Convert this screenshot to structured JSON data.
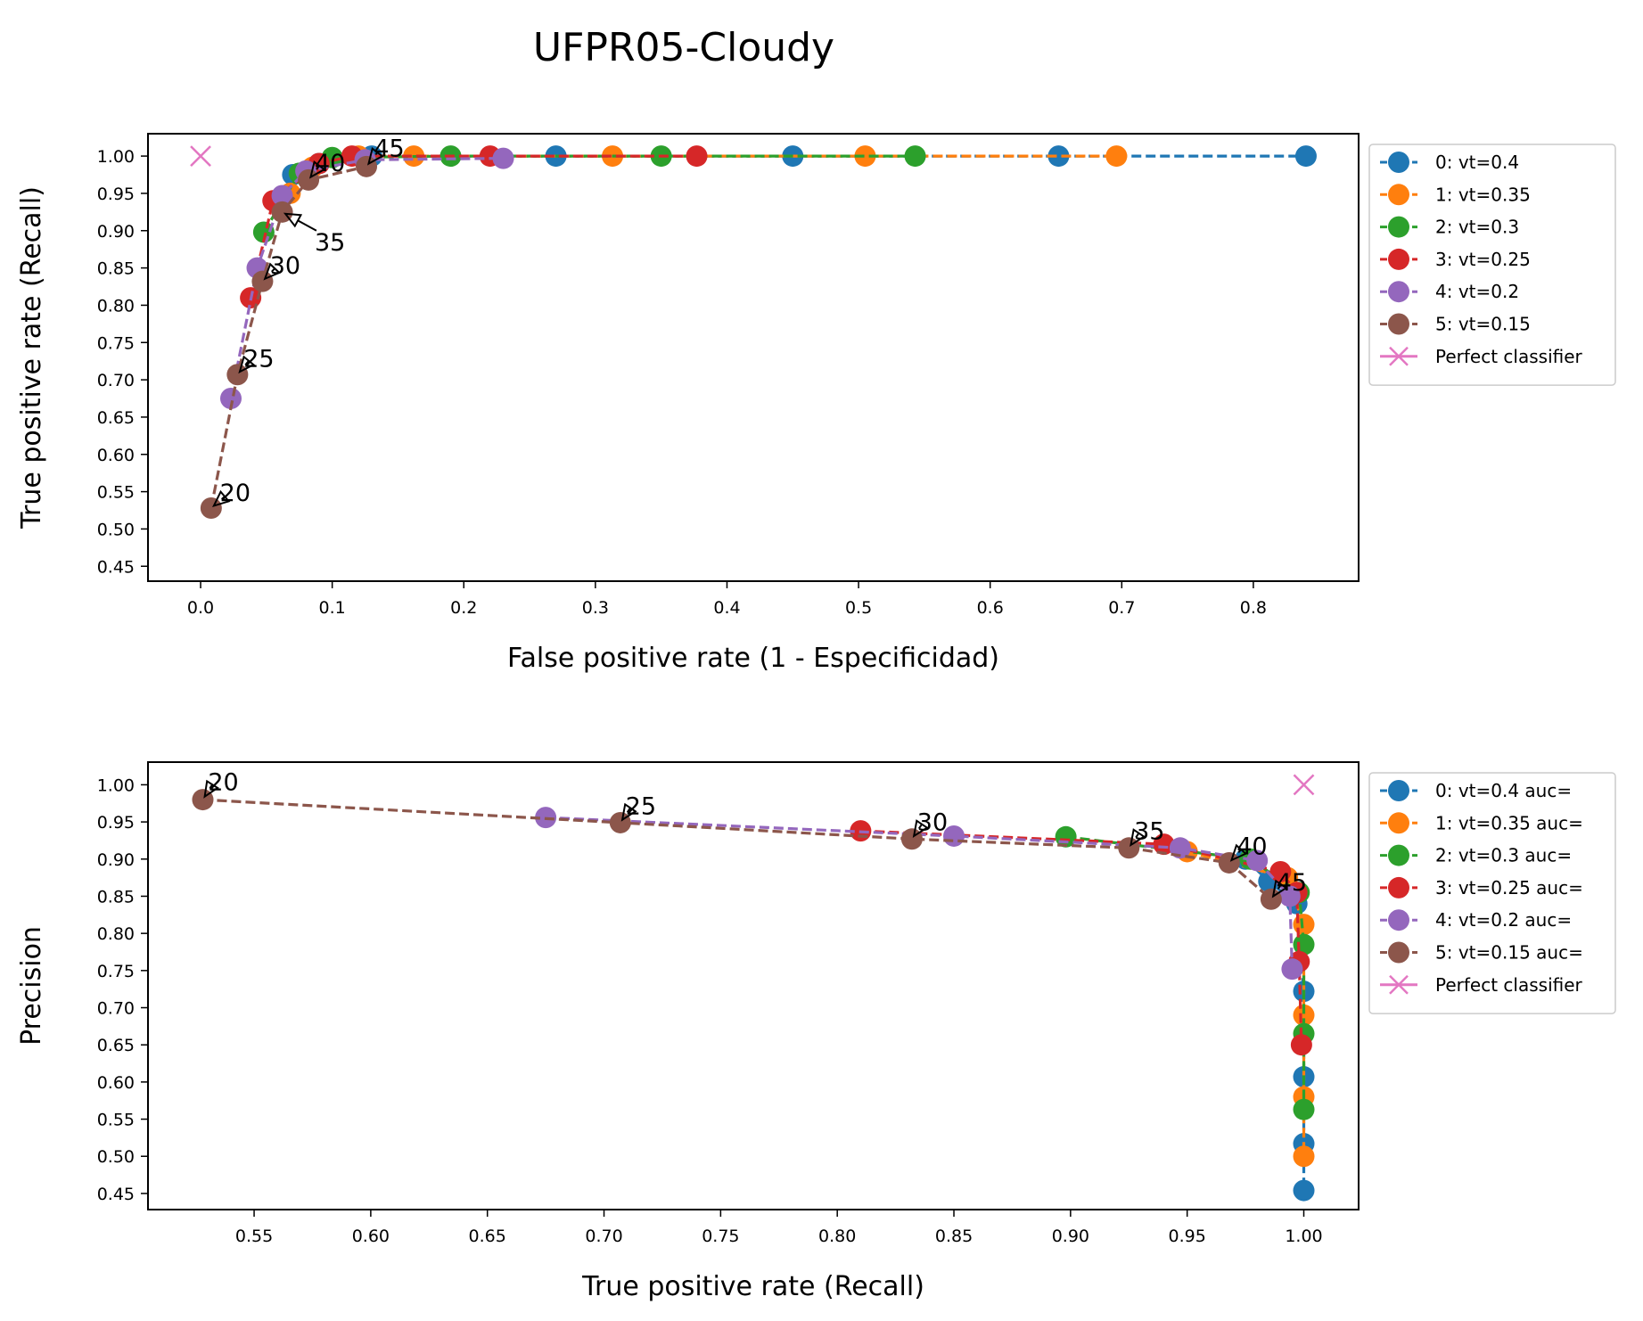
{
  "figure": {
    "title": "UFPR05-Cloudy"
  },
  "colors": {
    "series": [
      "#1f77b4",
      "#ff7f0e",
      "#2ca02c",
      "#d62728",
      "#9467bd",
      "#8c564b"
    ],
    "perfect": "#e377c2"
  },
  "chart_data": [
    {
      "type": "line",
      "name": "roc",
      "xlabel": "False positive rate (1 - Especificidad)",
      "ylabel": "True positive rate (Recall)",
      "xlim": [
        -0.04,
        0.88
      ],
      "ylim": [
        0.43,
        1.03
      ],
      "xticks": [
        0.0,
        0.1,
        0.2,
        0.3,
        0.4,
        0.5,
        0.6,
        0.7,
        0.8
      ],
      "yticks": [
        0.45,
        0.5,
        0.55,
        0.6,
        0.65,
        0.7,
        0.75,
        0.8,
        0.85,
        0.9,
        0.95,
        1.0
      ],
      "grid": false,
      "legend_position": "outside-right",
      "series": [
        {
          "name": "0: vt=0.4",
          "points": [
            [
              0.07,
              0.975
            ],
            [
              0.09,
              0.99
            ],
            [
              0.13,
              1.0
            ],
            [
              0.27,
              1.0
            ],
            [
              0.45,
              1.0
            ],
            [
              0.652,
              1.0
            ],
            [
              0.84,
              1.0
            ]
          ]
        },
        {
          "name": "1: vt=0.35",
          "points": [
            [
              0.068,
              0.95
            ],
            [
              0.085,
              0.985
            ],
            [
              0.12,
              1.0
            ],
            [
              0.162,
              1.0
            ],
            [
              0.313,
              1.0
            ],
            [
              0.505,
              1.0
            ],
            [
              0.696,
              1.0
            ]
          ]
        },
        {
          "name": "2: vt=0.3",
          "points": [
            [
              0.048,
              0.898
            ],
            [
              0.075,
              0.977
            ],
            [
              0.1,
              0.998
            ],
            [
              0.19,
              1.0
            ],
            [
              0.35,
              1.0
            ],
            [
              0.543,
              1.0
            ]
          ]
        },
        {
          "name": "3: vt=0.25",
          "points": [
            [
              0.038,
              0.81
            ],
            [
              0.055,
              0.94
            ],
            [
              0.09,
              0.99
            ],
            [
              0.115,
              1.0
            ],
            [
              0.22,
              1.0
            ],
            [
              0.377,
              1.0
            ]
          ]
        },
        {
          "name": "4: vt=0.2",
          "points": [
            [
              0.023,
              0.675
            ],
            [
              0.043,
              0.85
            ],
            [
              0.062,
              0.947
            ],
            [
              0.08,
              0.98
            ],
            [
              0.125,
              0.995
            ],
            [
              0.23,
              0.997
            ]
          ]
        },
        {
          "name": "5: vt=0.15",
          "points": [
            [
              0.008,
              0.528
            ],
            [
              0.028,
              0.707
            ],
            [
              0.047,
              0.832
            ],
            [
              0.062,
              0.925
            ],
            [
              0.082,
              0.968
            ],
            [
              0.126,
              0.986
            ]
          ]
        }
      ],
      "perfect": {
        "label": "Perfect classifier",
        "points": [
          [
            0.0,
            1.0
          ]
        ]
      },
      "annotations": [
        {
          "text": "20",
          "x": 0.008,
          "y": 0.528,
          "text_x": 0.016,
          "text_y": 0.54,
          "arrow": "up"
        },
        {
          "text": "25",
          "x": 0.028,
          "y": 0.707,
          "text_x": 0.034,
          "text_y": 0.72,
          "arrow": "up"
        },
        {
          "text": "30",
          "x": 0.047,
          "y": 0.832,
          "text_x": 0.054,
          "text_y": 0.845,
          "arrow": "up"
        },
        {
          "text": "35",
          "x": 0.062,
          "y": 0.925,
          "text_x": 0.088,
          "text_y": 0.9,
          "arrow": "down"
        },
        {
          "text": "40",
          "x": 0.082,
          "y": 0.968,
          "text_x": 0.088,
          "text_y": 0.982,
          "arrow": "up"
        },
        {
          "text": "45",
          "x": 0.126,
          "y": 0.986,
          "text_x": 0.133,
          "text_y": 1.002,
          "arrow": "up"
        }
      ]
    },
    {
      "type": "line",
      "name": "pr",
      "xlabel": "True positive rate (Recall)",
      "ylabel": "Precision",
      "xlim": [
        0.5045,
        1.0235
      ],
      "ylim": [
        0.4283,
        1.0305
      ],
      "xticks": [
        0.55,
        0.6,
        0.65,
        0.7,
        0.75,
        0.8,
        0.85,
        0.9,
        0.95,
        1.0
      ],
      "xtick_labels": [
        "0.55",
        "0.60",
        "0.65",
        "0.70",
        "0.75",
        "0.80",
        "0.85",
        "0.90",
        "0.95",
        "1.00"
      ],
      "yticks": [
        0.45,
        0.5,
        0.55,
        0.6,
        0.65,
        0.7,
        0.75,
        0.8,
        0.85,
        0.9,
        0.95,
        1.0
      ],
      "grid": false,
      "legend_position": "outside-right",
      "series": [
        {
          "name": "0: vt=0.4 auc=",
          "points": [
            [
              0.975,
              0.9
            ],
            [
              0.985,
              0.87
            ],
            [
              0.997,
              0.84
            ],
            [
              1.0,
              0.722
            ],
            [
              1.0,
              0.607
            ],
            [
              1.0,
              0.517
            ],
            [
              1.0,
              0.454
            ]
          ]
        },
        {
          "name": "1: vt=0.35 auc=",
          "points": [
            [
              0.95,
              0.91
            ],
            [
              0.993,
              0.875
            ],
            [
              1.0,
              0.812
            ],
            [
              1.0,
              0.69
            ],
            [
              1.0,
              0.58
            ],
            [
              1.0,
              0.5
            ]
          ]
        },
        {
          "name": "2: vt=0.3 auc=",
          "points": [
            [
              0.898,
              0.93
            ],
            [
              0.977,
              0.9
            ],
            [
              0.998,
              0.855
            ],
            [
              1.0,
              0.785
            ],
            [
              1.0,
              0.665
            ],
            [
              1.0,
              0.563
            ]
          ]
        },
        {
          "name": "3: vt=0.25 auc=",
          "points": [
            [
              0.81,
              0.938
            ],
            [
              0.94,
              0.92
            ],
            [
              0.99,
              0.883
            ],
            [
              0.997,
              0.855
            ],
            [
              0.998,
              0.762
            ],
            [
              0.999,
              0.65
            ]
          ]
        },
        {
          "name": "4: vt=0.2 auc=",
          "points": [
            [
              0.675,
              0.956
            ],
            [
              0.85,
              0.931
            ],
            [
              0.947,
              0.915
            ],
            [
              0.98,
              0.898
            ],
            [
              0.994,
              0.85
            ],
            [
              0.995,
              0.752
            ]
          ]
        },
        {
          "name": "5: vt=0.15 auc=",
          "points": [
            [
              0.528,
              0.98
            ],
            [
              0.707,
              0.949
            ],
            [
              0.832,
              0.927
            ],
            [
              0.925,
              0.915
            ],
            [
              0.968,
              0.895
            ],
            [
              0.986,
              0.846
            ]
          ]
        }
      ],
      "perfect": {
        "label": "Perfect classifier",
        "points": [
          [
            1.0,
            1.0
          ]
        ]
      },
      "annotations": [
        {
          "text": "20",
          "x": 0.528,
          "y": 0.98,
          "text_x": 0.531,
          "text_y": 0.995,
          "arrow": "up"
        },
        {
          "text": "25",
          "x": 0.707,
          "y": 0.949,
          "text_x": 0.71,
          "text_y": 0.963,
          "arrow": "up"
        },
        {
          "text": "30",
          "x": 0.832,
          "y": 0.927,
          "text_x": 0.835,
          "text_y": 0.941,
          "arrow": "up"
        },
        {
          "text": "35",
          "x": 0.925,
          "y": 0.915,
          "text_x": 0.928,
          "text_y": 0.929,
          "arrow": "up"
        },
        {
          "text": "40",
          "x": 0.968,
          "y": 0.895,
          "text_x": 0.972,
          "text_y": 0.909,
          "arrow": "up"
        },
        {
          "text": "45",
          "x": 0.986,
          "y": 0.846,
          "text_x": 0.989,
          "text_y": 0.86,
          "arrow": "up"
        }
      ]
    }
  ]
}
